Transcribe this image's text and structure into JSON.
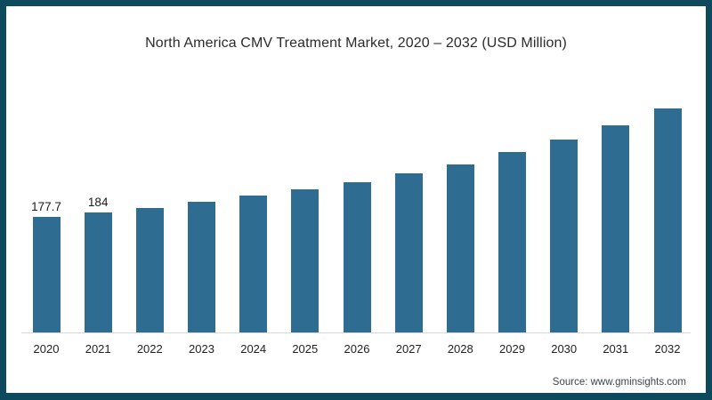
{
  "page": {
    "border_color": "#0d4a5d",
    "background": "#ffffff"
  },
  "chart_data": {
    "type": "bar",
    "title": "North America CMV Treatment Market, 2020 – 2032 (USD Million)",
    "categories": [
      "2020",
      "2021",
      "2022",
      "2023",
      "2024",
      "2025",
      "2026",
      "2027",
      "2028",
      "2029",
      "2030",
      "2031",
      "2032"
    ],
    "values": [
      177.7,
      184,
      191,
      201,
      210,
      220,
      231,
      245,
      259,
      277,
      296,
      319,
      344
    ],
    "data_labels": [
      "177.7",
      "184",
      "",
      "",
      "",
      "",
      "",
      "",
      "",
      "",
      "",
      "",
      ""
    ],
    "xlabel": "",
    "ylabel": "",
    "ylim": [
      0,
      380
    ],
    "y_axis_visible": false,
    "grid": false,
    "legend": false,
    "bar_color": "#2e6d91",
    "axis_line_color": "#d9d9d9"
  },
  "source": {
    "text": "Source: www.gminsights.com"
  }
}
